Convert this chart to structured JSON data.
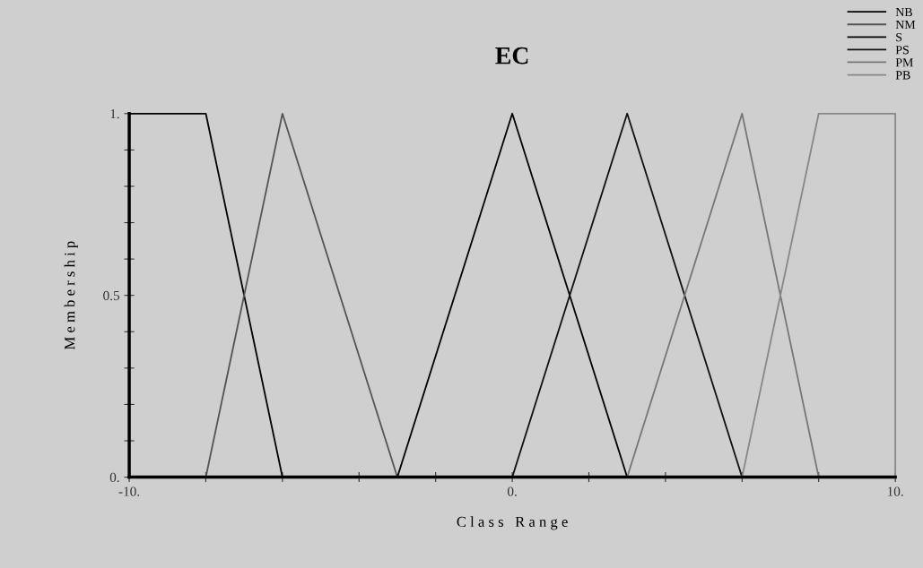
{
  "chart_data": {
    "type": "line",
    "title": "EC",
    "xlabel": "C l a s s   R a n g e",
    "ylabel": "M e m b e r s h i p",
    "xlim": [
      -10,
      10
    ],
    "ylim": [
      0,
      1
    ],
    "xticks": [
      {
        "value": -10,
        "label": "-10."
      },
      {
        "value": -8,
        "label": null
      },
      {
        "value": -6,
        "label": null
      },
      {
        "value": -4,
        "label": null
      },
      {
        "value": -2,
        "label": null
      },
      {
        "value": 0,
        "label": "0."
      },
      {
        "value": 2,
        "label": null
      },
      {
        "value": 4,
        "label": null
      },
      {
        "value": 6,
        "label": null
      },
      {
        "value": 8,
        "label": null
      },
      {
        "value": 10,
        "label": "10."
      }
    ],
    "yticks": [
      {
        "value": 0,
        "label": "0."
      },
      {
        "value": 0.1,
        "label": null
      },
      {
        "value": 0.2,
        "label": null
      },
      {
        "value": 0.3,
        "label": null
      },
      {
        "value": 0.4,
        "label": null
      },
      {
        "value": 0.5,
        "label": "0.5"
      },
      {
        "value": 0.6,
        "label": null
      },
      {
        "value": 0.7,
        "label": null
      },
      {
        "value": 0.8,
        "label": null
      },
      {
        "value": 0.9,
        "label": null
      },
      {
        "value": 1,
        "label": "1."
      }
    ],
    "grid": false,
    "legend": "top right",
    "marker": "none",
    "line_style": "solid",
    "series": [
      {
        "name": "NB",
        "color": "#000000",
        "x": [
          -10,
          -10,
          -8,
          -6
        ],
        "values": [
          0,
          1,
          1,
          0
        ]
      },
      {
        "name": "NM",
        "color": "#555555",
        "x": [
          -8,
          -6,
          -3
        ],
        "values": [
          0,
          1,
          0
        ]
      },
      {
        "name": "S",
        "color": "#000000",
        "x": [
          -3,
          0,
          3
        ],
        "values": [
          0,
          1,
          0
        ]
      },
      {
        "name": "PS",
        "color": "#111111",
        "x": [
          0,
          3,
          6
        ],
        "values": [
          0,
          1,
          0
        ]
      },
      {
        "name": "PM",
        "color": "#777777",
        "x": [
          3,
          6,
          8
        ],
        "values": [
          0,
          1,
          0
        ]
      },
      {
        "name": "PB",
        "color": "#888888",
        "x": [
          6,
          8,
          10,
          10
        ],
        "values": [
          0,
          1,
          1,
          0
        ]
      }
    ]
  }
}
